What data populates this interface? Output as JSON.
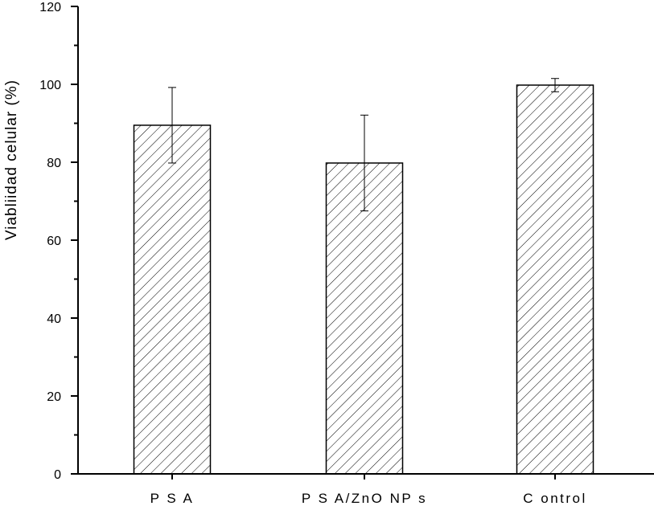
{
  "chart_data": {
    "type": "bar",
    "categories": [
      "PSA",
      "PSA/ZnO NPs",
      "Control"
    ],
    "category_labels": [
      "P S A",
      "P S A/ZnO  NP s",
      "C ontrol"
    ],
    "values": [
      89.5,
      79.8,
      99.8
    ],
    "errors": [
      9.7,
      12.3,
      1.7
    ],
    "ylabel": "Viabliidad celular (%)",
    "xlabel": "",
    "ylim": [
      0,
      120
    ],
    "yticks": [
      0,
      20,
      40,
      60,
      80,
      100,
      120
    ],
    "ytick_labels": [
      "0",
      "20",
      "40",
      "60",
      "80",
      "100",
      "120"
    ],
    "bar_fill": "hatched",
    "bar_color": "#000000",
    "grid": false,
    "legend": "none"
  }
}
